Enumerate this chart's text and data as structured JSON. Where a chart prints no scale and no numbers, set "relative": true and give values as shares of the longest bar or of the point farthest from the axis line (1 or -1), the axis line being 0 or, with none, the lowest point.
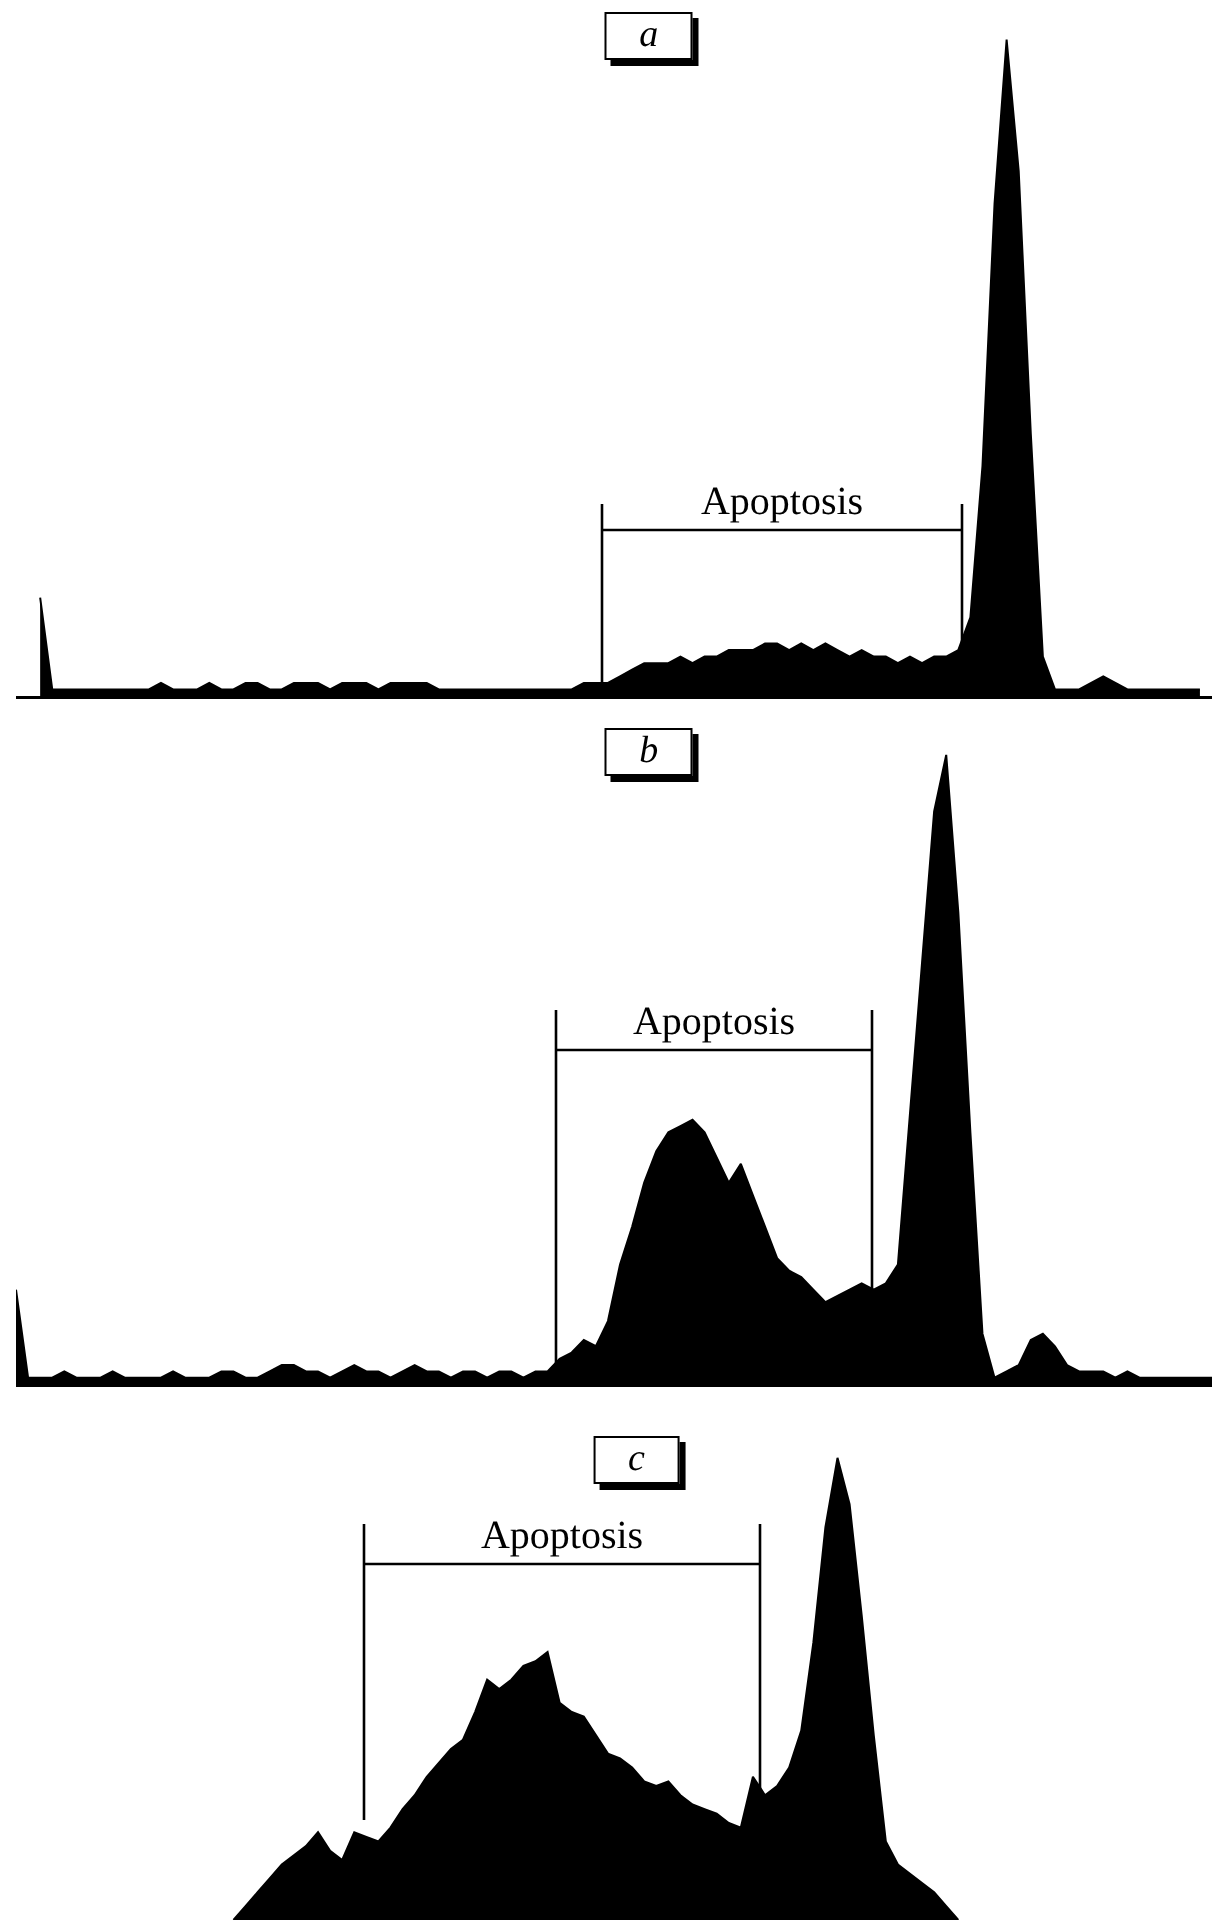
{
  "chart_data": [
    {
      "type": "area",
      "title": "a",
      "relative": true,
      "categories": [
        null,
        null,
        null,
        null,
        null,
        null,
        null,
        null,
        null,
        null,
        null,
        null,
        null,
        null,
        null,
        null,
        null,
        null,
        null,
        null,
        null,
        null,
        null,
        null,
        null,
        null,
        null,
        null,
        null,
        null,
        null,
        null,
        null,
        null,
        null,
        null,
        null,
        null,
        null,
        null,
        null,
        null,
        null,
        null,
        null,
        null,
        null,
        null,
        null,
        null,
        null,
        null,
        null,
        null,
        null,
        null,
        null,
        null,
        null,
        null,
        null,
        null,
        null,
        null,
        null,
        null,
        null,
        null,
        null,
        null,
        null,
        null,
        null,
        null,
        null,
        null,
        null,
        null,
        null,
        null,
        null,
        null,
        null,
        null,
        null,
        null,
        null,
        null,
        null,
        null,
        null,
        null,
        null,
        null,
        null,
        null,
        null,
        null,
        null,
        null
      ],
      "series": [
        {
          "color": "#000000",
          "values": [
            null,
            null,
            0.15,
            0.01,
            0.01,
            0.01,
            0.01,
            0.01,
            0.01,
            0.01,
            0.01,
            0.01,
            0.02,
            0.01,
            0.01,
            0.01,
            0.02,
            0.01,
            0.01,
            0.02,
            0.02,
            0.01,
            0.01,
            0.02,
            0.02,
            0.02,
            0.01,
            0.02,
            0.02,
            0.02,
            0.01,
            0.02,
            0.02,
            0.02,
            0.02,
            0.01,
            0.01,
            0.01,
            0.01,
            0.01,
            0.01,
            0.01,
            0.01,
            0.01,
            0.01,
            0.01,
            0.01,
            0.02,
            0.02,
            0.02,
            0.03,
            0.04,
            0.05,
            0.05,
            0.05,
            0.06,
            0.05,
            0.06,
            0.06,
            0.07,
            0.07,
            0.07,
            0.08,
            0.08,
            0.07,
            0.08,
            0.07,
            0.08,
            0.07,
            0.06,
            0.07,
            0.06,
            0.06,
            0.05,
            0.06,
            0.05,
            0.06,
            0.06,
            0.07,
            0.12,
            0.35,
            0.75,
            1,
            0.8,
            0.4,
            0.06,
            0.01,
            0.01,
            0.01,
            0.02,
            0.03,
            0.02,
            0.01,
            0.01,
            0.01,
            0.01,
            0.01,
            0.01,
            0.01,
            null
          ]
        }
      ],
      "annotations": [
        "Apoptosis"
      ]
    },
    {
      "type": "area",
      "title": "b",
      "relative": true,
      "categories": [
        null,
        null,
        null,
        null,
        null,
        null,
        null,
        null,
        null,
        null,
        null,
        null,
        null,
        null,
        null,
        null,
        null,
        null,
        null,
        null,
        null,
        null,
        null,
        null,
        null,
        null,
        null,
        null,
        null,
        null,
        null,
        null,
        null,
        null,
        null,
        null,
        null,
        null,
        null,
        null,
        null,
        null,
        null,
        null,
        null,
        null,
        null,
        null,
        null,
        null,
        null,
        null,
        null,
        null,
        null,
        null,
        null,
        null,
        null,
        null,
        null,
        null,
        null,
        null,
        null,
        null,
        null,
        null,
        null,
        null,
        null,
        null,
        null,
        null,
        null,
        null,
        null,
        null,
        null,
        null,
        null,
        null,
        null,
        null,
        null,
        null,
        null,
        null,
        null,
        null,
        null,
        null,
        null,
        null,
        null,
        null,
        null,
        null,
        null,
        null
      ],
      "series": [
        {
          "color": "#000000",
          "values": [
            0.15,
            0.01,
            0.01,
            0.01,
            0.02,
            0.01,
            0.01,
            0.01,
            0.02,
            0.01,
            0.01,
            0.01,
            0.01,
            0.02,
            0.01,
            0.01,
            0.01,
            0.02,
            0.02,
            0.01,
            0.01,
            0.02,
            0.03,
            0.03,
            0.02,
            0.02,
            0.01,
            0.02,
            0.03,
            0.02,
            0.02,
            0.01,
            0.02,
            0.03,
            0.02,
            0.02,
            0.01,
            0.02,
            0.02,
            0.01,
            0.02,
            0.02,
            0.01,
            0.02,
            0.02,
            0.04,
            0.05,
            0.07,
            0.06,
            0.1,
            0.19,
            0.25,
            0.32,
            0.37,
            0.4,
            0.41,
            0.42,
            0.4,
            0.36,
            0.32,
            0.35,
            0.3,
            0.25,
            0.2,
            0.18,
            0.17,
            0.15,
            0.13,
            0.14,
            0.15,
            0.16,
            0.15,
            0.16,
            0.19,
            0.43,
            0.67,
            0.91,
            1,
            0.75,
            0.4,
            0.08,
            0.01,
            0.02,
            0.03,
            0.07,
            0.08,
            0.06,
            0.03,
            0.02,
            0.02,
            0.02,
            0.01,
            0.02,
            0.01,
            0.01,
            0.01,
            0.01,
            0.01,
            0.01,
            0.01
          ]
        }
      ],
      "annotations": [
        "Apoptosis"
      ]
    },
    {
      "type": "area",
      "title": "c",
      "relative": true,
      "categories": [
        null,
        null,
        null,
        null,
        null,
        null,
        null,
        null,
        null,
        null,
        null,
        null,
        null,
        null,
        null,
        null,
        null,
        null,
        null,
        null,
        null,
        null,
        null,
        null,
        null,
        null,
        null,
        null,
        null,
        null,
        null,
        null,
        null,
        null,
        null,
        null,
        null,
        null,
        null,
        null,
        null,
        null,
        null,
        null,
        null,
        null,
        null,
        null,
        null,
        null,
        null,
        null,
        null,
        null,
        null,
        null,
        null,
        null,
        null,
        null,
        null,
        null,
        null,
        null,
        null,
        null,
        null,
        null,
        null,
        null,
        null,
        null,
        null,
        null,
        null,
        null,
        null,
        null,
        null,
        null,
        null,
        null,
        null,
        null,
        null,
        null,
        null,
        null,
        null,
        null,
        null,
        null,
        null,
        null,
        null,
        null,
        null,
        null,
        null,
        null
      ],
      "series": [
        {
          "color": "#000000",
          "values": [
            null,
            null,
            null,
            null,
            null,
            null,
            null,
            null,
            null,
            null,
            null,
            null,
            null,
            null,
            null,
            null,
            null,
            null,
            0,
            0.03,
            0.06,
            0.09,
            0.12,
            0.14,
            0.16,
            0.19,
            0.15,
            0.13,
            0.19,
            0.18,
            0.17,
            0.2,
            0.24,
            0.27,
            0.31,
            0.34,
            0.37,
            0.39,
            0.45,
            0.52,
            0.5,
            0.52,
            0.55,
            0.56,
            0.58,
            0.47,
            0.45,
            0.44,
            0.4,
            0.36,
            0.35,
            0.33,
            0.3,
            0.29,
            0.3,
            0.27,
            0.25,
            0.24,
            0.23,
            0.21,
            0.2,
            0.31,
            0.27,
            0.29,
            0.33,
            0.41,
            0.6,
            0.85,
            1,
            0.9,
            0.66,
            0.4,
            0.17,
            0.12,
            0.1,
            0.08,
            0.06,
            0.03,
            0,
            null,
            null,
            null,
            null,
            null,
            null,
            null,
            null,
            null,
            null,
            null,
            null,
            null,
            null,
            null,
            null,
            null,
            null,
            null,
            null,
            null
          ]
        }
      ],
      "annotations": [
        "Apoptosis"
      ]
    }
  ]
}
